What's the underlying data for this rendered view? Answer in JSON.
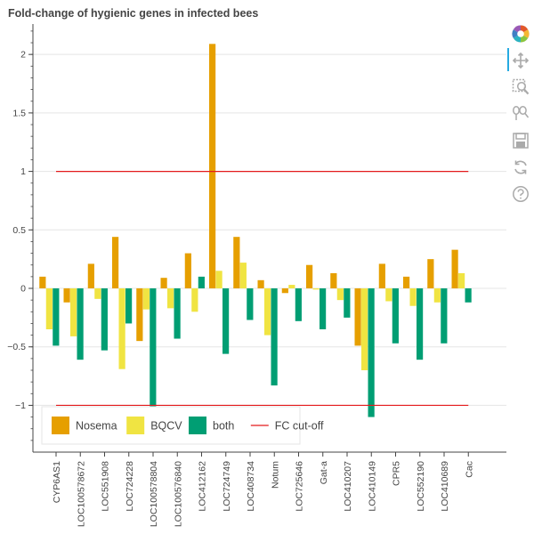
{
  "toolbar": {
    "tools": [
      {
        "name": "bokeh-logo-icon"
      },
      {
        "name": "pan-icon"
      },
      {
        "name": "box-zoom-icon"
      },
      {
        "name": "wheel-zoom-icon"
      },
      {
        "name": "save-icon"
      },
      {
        "name": "reset-icon"
      },
      {
        "name": "help-icon"
      }
    ]
  },
  "colors": {
    "Nosema": "#E69F00",
    "BQCV": "#F0E442",
    "both": "#009E73",
    "cutoff": "#E41A1C",
    "grid": "#e5e5e5",
    "axis": "#444444"
  },
  "chart_data": {
    "type": "bar",
    "title": "Fold-change of hygienic genes in infected bees",
    "xlabel": "",
    "ylabel": "",
    "ylim": [
      -1.4,
      2.26
    ],
    "yticks": [
      -1,
      -0.5,
      0,
      0.5,
      1,
      1.5,
      2
    ],
    "ytick_labels": [
      "−1",
      "−0.5",
      "0",
      "0.5",
      "1",
      "1.5",
      "2"
    ],
    "grid": true,
    "legend_position": "bottom-left",
    "categories": [
      "CYP6AS1",
      "LOC100578672",
      "LOC551908",
      "LOC724228",
      "LOC100578804",
      "LOC100576840",
      "LOC412162",
      "LOC724749",
      "LOC408734",
      "Notum",
      "LOC725646",
      "Gat-a",
      "LOC410207",
      "LOC410149",
      "CPR5",
      "LOC552190",
      "LOC410689",
      "Cac"
    ],
    "series": [
      {
        "name": "Nosema",
        "values": [
          0.1,
          -0.12,
          0.21,
          0.44,
          -0.45,
          0.09,
          0.3,
          2.09,
          0.44,
          0.07,
          -0.04,
          0.2,
          0.13,
          -0.49,
          0.21,
          0.1,
          0.25,
          0.33
        ]
      },
      {
        "name": "BQCV",
        "values": [
          -0.35,
          -0.41,
          -0.09,
          -0.69,
          -0.18,
          -0.17,
          -0.2,
          0.15,
          0.22,
          -0.4,
          0.03,
          -0.01,
          -0.1,
          -0.7,
          -0.11,
          -0.15,
          -0.12,
          0.13
        ]
      },
      {
        "name": "both",
        "values": [
          -0.49,
          -0.61,
          -0.53,
          -0.3,
          -1.01,
          -0.43,
          0.1,
          -0.56,
          -0.27,
          -0.83,
          -0.28,
          -0.35,
          -0.25,
          -1.1,
          -0.47,
          -0.61,
          -0.47,
          -0.12
        ]
      }
    ],
    "lines": [
      {
        "name": "FC cut-off",
        "y": 1,
        "x_extent": "categories"
      },
      {
        "name": "FC cut-off",
        "y": -1,
        "x_extent": "categories"
      }
    ],
    "legend": [
      {
        "label": "Nosema",
        "kind": "bar"
      },
      {
        "label": "BQCV",
        "kind": "bar"
      },
      {
        "label": "both",
        "kind": "bar"
      },
      {
        "label": "FC cut-off",
        "kind": "line"
      }
    ]
  }
}
